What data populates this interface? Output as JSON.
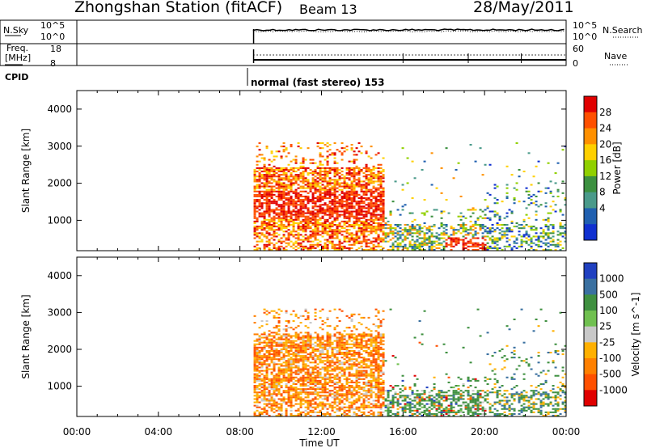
{
  "header": {
    "station": "Zhongshan Station (fitACF)",
    "beam": "Beam 13",
    "date": "28/May/2011"
  },
  "top_panels": {
    "nsky_label": "N.Sky",
    "nsky_ticks": [
      "10^5",
      "10^0"
    ],
    "nsearch_label": "N.Search",
    "nsearch_ticks": [
      "10^5",
      "10^0"
    ],
    "freq_label": "Freq.",
    "freq_unit": "[MHz]",
    "freq_ticks": [
      "18",
      "8"
    ],
    "nave_label": "Nave",
    "nave_ticks": [
      "60",
      "0"
    ],
    "cpid_label": "CPID",
    "cpid_text": "normal (fast stereo) 153"
  },
  "chart_data": [
    {
      "type": "heatmap",
      "panel": "power",
      "ylabel": "Slant Range [km]",
      "colorbar_label": "Power [dB]",
      "colorbar_ticks": [
        "28",
        "24",
        "20",
        "16",
        "12",
        "8",
        "4"
      ],
      "colorbar_colors": [
        "#e00000",
        "#ff5000",
        "#ff9000",
        "#ffd000",
        "#90d000",
        "#3c9040",
        "#4a9a8a",
        "#2060b0",
        "#1030d0"
      ],
      "yticks": [
        "4000",
        "3000",
        "2000",
        "1000"
      ],
      "ylim": [
        180,
        4500
      ],
      "xlim": [
        0,
        24
      ],
      "data_start_ut": 8.67,
      "data_end_ut": 24
    },
    {
      "type": "heatmap",
      "panel": "velocity",
      "ylabel": "Slant Range [km]",
      "colorbar_label": "Velocity [m s^-1]",
      "colorbar_ticks": [
        "1000",
        "500",
        "100",
        "25",
        "-25",
        "-100",
        "-500",
        "-1000"
      ],
      "colorbar_colors": [
        "#2040c0",
        "#3a70a0",
        "#3f9040",
        "#70c050",
        "#c8c8c8",
        "#ffb000",
        "#ff8000",
        "#ff5000",
        "#e00000"
      ],
      "yticks": [
        "4000",
        "3000",
        "2000",
        "1000"
      ],
      "ylim": [
        180,
        4500
      ],
      "xlim": [
        0,
        24
      ],
      "data_start_ut": 8.67,
      "data_end_ut": 24
    }
  ],
  "xaxis": {
    "ticks": [
      "00:00",
      "04:00",
      "08:00",
      "12:00",
      "16:00",
      "20:00",
      "00:00"
    ],
    "label": "Time UT"
  }
}
